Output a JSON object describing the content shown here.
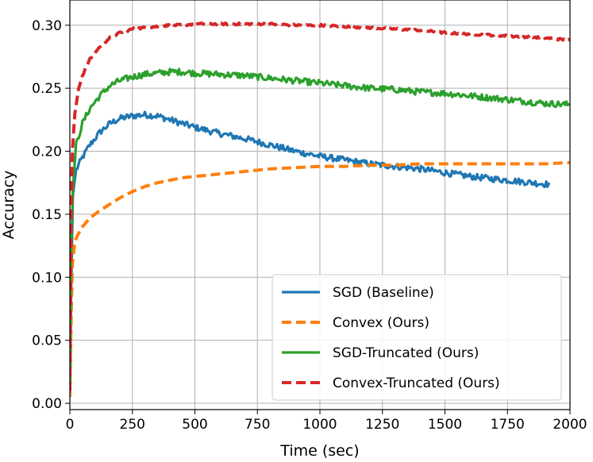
{
  "chart_data": {
    "type": "line",
    "title": "",
    "xlabel": "Time (sec)",
    "ylabel": "Accuracy",
    "xlim": [
      0,
      2000
    ],
    "ylim": [
      -0.005,
      0.32
    ],
    "xticks": [
      0,
      250,
      500,
      750,
      1000,
      1250,
      1500,
      1750,
      2000
    ],
    "yticks": [
      0.0,
      0.05,
      0.1,
      0.15,
      0.2,
      0.25,
      0.3
    ],
    "grid": true,
    "legend_position": "lower-right",
    "series": [
      {
        "name": "SGD (Baseline)",
        "color": "#1f77b4",
        "dash": "solid",
        "noise": 0.0025,
        "x": [
          0,
          5,
          12,
          25,
          50,
          80,
          120,
          160,
          200,
          250,
          300,
          350,
          400,
          450,
          500,
          600,
          700,
          800,
          900,
          1000,
          1100,
          1200,
          1300,
          1400,
          1500,
          1600,
          1700,
          1800,
          1900,
          1920
        ],
        "y": [
          0.005,
          0.09,
          0.165,
          0.185,
          0.195,
          0.205,
          0.215,
          0.222,
          0.226,
          0.228,
          0.229,
          0.228,
          0.225,
          0.222,
          0.219,
          0.214,
          0.21,
          0.205,
          0.2,
          0.196,
          0.193,
          0.19,
          0.188,
          0.186,
          0.183,
          0.18,
          0.178,
          0.176,
          0.174,
          0.174
        ]
      },
      {
        "name": "Convex (Ours)",
        "color": "#ff7f0e",
        "dash": "dashed",
        "noise": 0,
        "x": [
          0,
          5,
          10,
          20,
          30,
          50,
          80,
          120,
          160,
          200,
          250,
          300,
          350,
          400,
          450,
          500,
          550,
          600,
          650,
          700,
          750,
          800,
          900,
          1000,
          1100,
          1200,
          1300,
          1400,
          1500,
          1600,
          1700,
          1800,
          1900,
          2000
        ],
        "y": [
          0.005,
          0.07,
          0.11,
          0.128,
          0.133,
          0.14,
          0.147,
          0.153,
          0.158,
          0.163,
          0.168,
          0.172,
          0.175,
          0.177,
          0.179,
          0.18,
          0.181,
          0.182,
          0.183,
          0.184,
          0.185,
          0.186,
          0.187,
          0.188,
          0.188,
          0.189,
          0.189,
          0.19,
          0.19,
          0.19,
          0.19,
          0.19,
          0.19,
          0.191
        ]
      },
      {
        "name": "SGD-Truncated (Ours)",
        "color": "#2ca02c",
        "dash": "solid",
        "noise": 0.0025,
        "x": [
          0,
          5,
          12,
          25,
          50,
          80,
          120,
          160,
          200,
          250,
          300,
          350,
          400,
          450,
          500,
          600,
          700,
          800,
          900,
          1000,
          1100,
          1200,
          1300,
          1400,
          1500,
          1600,
          1700,
          1800,
          1900,
          2000
        ],
        "y": [
          0.01,
          0.12,
          0.17,
          0.205,
          0.222,
          0.234,
          0.244,
          0.252,
          0.256,
          0.259,
          0.261,
          0.262,
          0.263,
          0.263,
          0.262,
          0.261,
          0.26,
          0.258,
          0.256,
          0.254,
          0.252,
          0.25,
          0.249,
          0.247,
          0.246,
          0.244,
          0.242,
          0.24,
          0.238,
          0.237
        ]
      },
      {
        "name": "Convex-Truncated (Ours)",
        "color": "#d62728",
        "dash": "dashed",
        "noise": 0.0008,
        "x": [
          0,
          5,
          10,
          20,
          35,
          50,
          80,
          120,
          160,
          200,
          250,
          300,
          350,
          400,
          450,
          500,
          600,
          700,
          800,
          900,
          1000,
          1100,
          1200,
          1300,
          1400,
          1500,
          1600,
          1700,
          1800,
          1900,
          2000
        ],
        "y": [
          0.01,
          0.15,
          0.2,
          0.23,
          0.25,
          0.26,
          0.273,
          0.283,
          0.29,
          0.294,
          0.297,
          0.298,
          0.299,
          0.3,
          0.3,
          0.301,
          0.301,
          0.301,
          0.301,
          0.3,
          0.3,
          0.299,
          0.298,
          0.297,
          0.296,
          0.294,
          0.293,
          0.292,
          0.291,
          0.29,
          0.288
        ]
      }
    ]
  }
}
